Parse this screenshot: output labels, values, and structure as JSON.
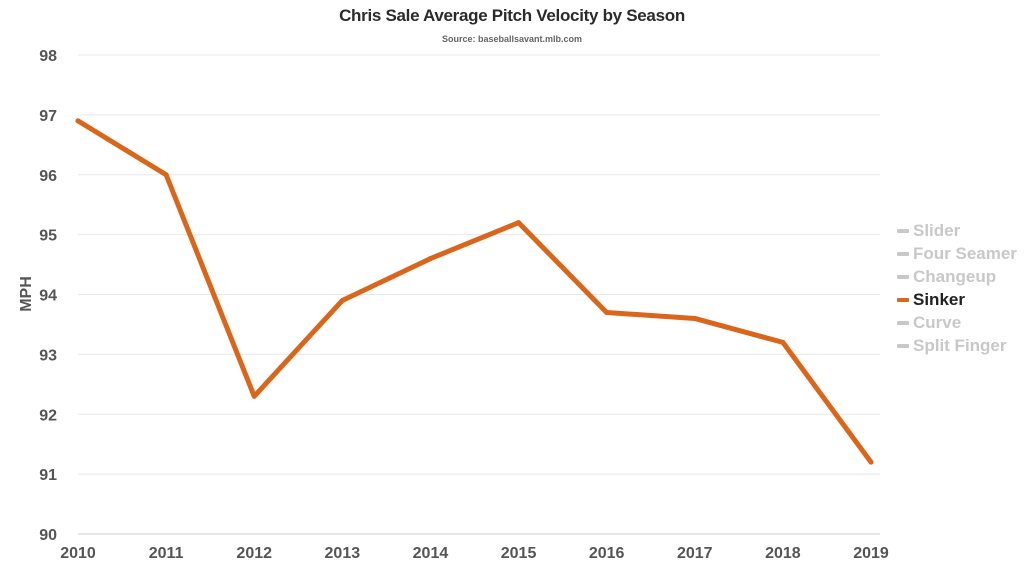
{
  "chart_data": {
    "type": "line",
    "title": "Chris Sale Average Pitch Velocity by Season",
    "subtitle": "Source: baseballsavant.mlb.com",
    "xlabel": "",
    "ylabel": "MPH",
    "x": [
      2010,
      2011,
      2012,
      2013,
      2014,
      2015,
      2016,
      2017,
      2018,
      2019
    ],
    "ylim": [
      90,
      98
    ],
    "yticks": [
      90,
      91,
      92,
      93,
      94,
      95,
      96,
      97,
      98
    ],
    "grid": true,
    "legend_placement": "right",
    "legend": [
      {
        "name": "Slider",
        "visible": false
      },
      {
        "name": "Four Seamer",
        "visible": false
      },
      {
        "name": "Changeup",
        "visible": false
      },
      {
        "name": "Sinker",
        "visible": true
      },
      {
        "name": "Curve",
        "visible": false
      },
      {
        "name": "Split Finger",
        "visible": false
      }
    ],
    "series": [
      {
        "name": "Sinker",
        "color": "#d9661a",
        "values": [
          96.9,
          96.0,
          92.3,
          93.9,
          94.6,
          95.2,
          93.7,
          93.6,
          93.2,
          91.2
        ]
      }
    ]
  }
}
